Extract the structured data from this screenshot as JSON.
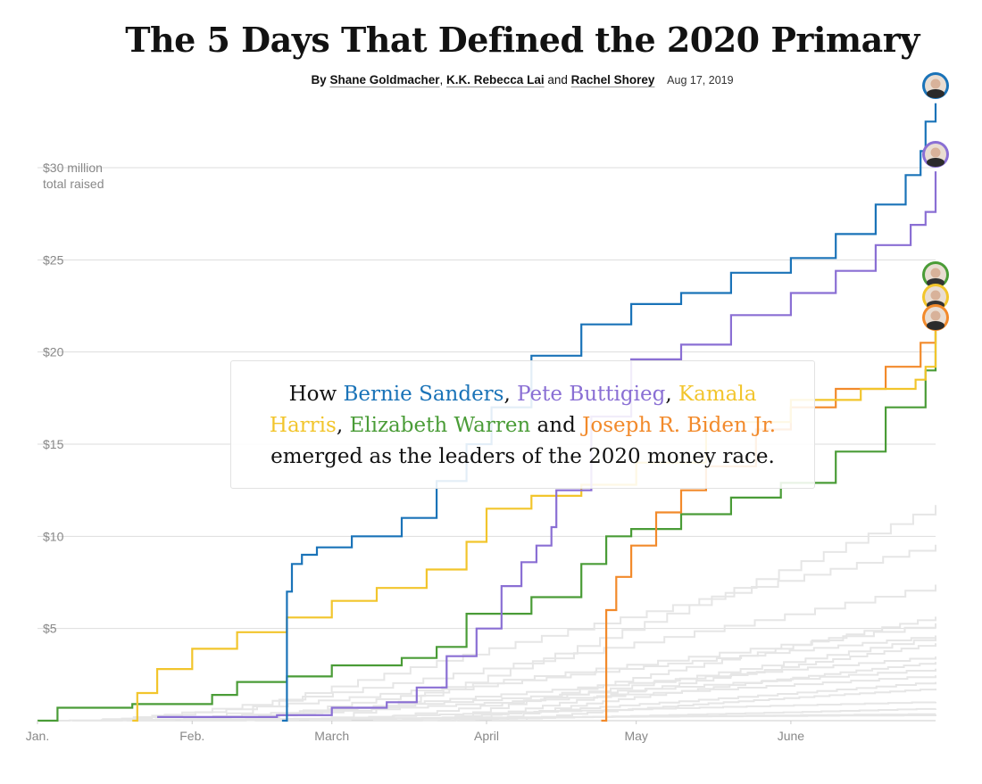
{
  "headline": "The 5 Days That Defined the 2020 Primary",
  "byline": {
    "by": "By",
    "authors": [
      "Shane Goldmacher",
      "K.K. Rebecca Lai",
      "Rachel Shorey"
    ],
    "sep1": ", ",
    "sep2": " and ",
    "date": "Aug 17, 2019"
  },
  "callout": {
    "prefix": "How ",
    "names": [
      "Bernie Sanders",
      "Pete Buttigieg",
      "Kamala Harris",
      "Elizabeth Warren",
      "Joseph R. Biden Jr."
    ],
    "comma": ", ",
    "and": " and ",
    "suffix": " emerged as the leaders of the 2020 money race."
  },
  "colors": {
    "sanders": "#1a73b8",
    "buttigieg": "#8a6fd4",
    "harris": "#f2c52c",
    "warren": "#4a9c37",
    "biden": "#f28a2b",
    "others": "#e6e6e6",
    "grid": "#dddddd",
    "axis_text": "#888888"
  },
  "chart_data": {
    "type": "line",
    "step": true,
    "ylim": [
      0,
      35
    ],
    "y_ticks": [
      {
        "value": 5,
        "label": "$5"
      },
      {
        "value": 10,
        "label": "$10"
      },
      {
        "value": 15,
        "label": "$15"
      },
      {
        "value": 20,
        "label": "$20"
      },
      {
        "value": 25,
        "label": "$25"
      },
      {
        "value": 30,
        "label": "$30 million",
        "label2": "total raised"
      }
    ],
    "x_ticks": [
      {
        "date": "2019-01-01",
        "label": "Jan."
      },
      {
        "date": "2019-02-01",
        "label": "Feb."
      },
      {
        "date": "2019-03-01",
        "label": "March"
      },
      {
        "date": "2019-04-01",
        "label": "April"
      },
      {
        "date": "2019-05-01",
        "label": "May"
      },
      {
        "date": "2019-06-01",
        "label": "June"
      }
    ],
    "xlim": [
      "2019-01-01",
      "2019-06-30"
    ],
    "series": [
      {
        "key": "sanders",
        "x": [
          "2019-02-19",
          "2019-02-20",
          "2019-02-21",
          "2019-02-23",
          "2019-02-26",
          "2019-03-05",
          "2019-03-15",
          "2019-03-22",
          "2019-03-28",
          "2019-04-02",
          "2019-04-10",
          "2019-04-20",
          "2019-04-30",
          "2019-05-10",
          "2019-05-20",
          "2019-06-01",
          "2019-06-10",
          "2019-06-18",
          "2019-06-24",
          "2019-06-27",
          "2019-06-28",
          "2019-06-30"
        ],
        "y": [
          0,
          7.0,
          8.5,
          9.0,
          9.4,
          10.0,
          11.0,
          13.0,
          15.0,
          17.0,
          19.8,
          21.5,
          22.6,
          23.2,
          24.3,
          25.1,
          26.4,
          28.0,
          29.6,
          30.9,
          32.5,
          33.5
        ]
      },
      {
        "key": "buttigieg",
        "x": [
          "2019-01-25",
          "2019-02-05",
          "2019-02-18",
          "2019-03-01",
          "2019-03-12",
          "2019-03-18",
          "2019-03-24",
          "2019-03-30",
          "2019-04-04",
          "2019-04-08",
          "2019-04-11",
          "2019-04-14",
          "2019-04-15",
          "2019-04-22",
          "2019-04-30",
          "2019-05-10",
          "2019-05-20",
          "2019-06-01",
          "2019-06-10",
          "2019-06-18",
          "2019-06-25",
          "2019-06-28",
          "2019-06-30"
        ],
        "y": [
          0.2,
          0.2,
          0.3,
          0.7,
          1.0,
          1.8,
          3.5,
          5.0,
          7.3,
          8.6,
          9.5,
          10.5,
          12.5,
          16.5,
          19.6,
          20.4,
          22.0,
          23.2,
          24.4,
          25.8,
          26.9,
          27.6,
          29.8
        ]
      },
      {
        "key": "harris",
        "x": [
          "2019-01-20",
          "2019-01-21",
          "2019-01-25",
          "2019-02-01",
          "2019-02-10",
          "2019-02-20",
          "2019-03-01",
          "2019-03-10",
          "2019-03-20",
          "2019-03-28",
          "2019-04-01",
          "2019-04-10",
          "2019-04-20",
          "2019-05-01",
          "2019-05-15",
          "2019-06-01",
          "2019-06-15",
          "2019-06-26",
          "2019-06-28",
          "2019-06-30"
        ],
        "y": [
          0,
          1.5,
          2.8,
          3.9,
          4.8,
          5.6,
          6.5,
          7.2,
          8.2,
          9.7,
          11.5,
          12.2,
          12.8,
          14.0,
          16.2,
          17.4,
          18.0,
          18.5,
          19.2,
          22.0
        ]
      },
      {
        "key": "warren",
        "x": [
          "2019-01-01",
          "2019-01-05",
          "2019-01-20",
          "2019-02-05",
          "2019-02-10",
          "2019-02-20",
          "2019-03-01",
          "2019-03-15",
          "2019-03-22",
          "2019-03-28",
          "2019-04-10",
          "2019-04-20",
          "2019-04-25",
          "2019-04-30",
          "2019-05-10",
          "2019-05-20",
          "2019-05-30",
          "2019-06-10",
          "2019-06-20",
          "2019-06-28",
          "2019-06-30"
        ],
        "y": [
          0,
          0.7,
          0.9,
          1.4,
          2.1,
          2.4,
          3.0,
          3.4,
          4.0,
          5.8,
          6.7,
          8.5,
          10.0,
          10.4,
          11.2,
          12.1,
          12.9,
          14.6,
          17.0,
          19.0,
          22.6
        ]
      },
      {
        "key": "biden",
        "x": [
          "2019-04-24",
          "2019-04-25",
          "2019-04-27",
          "2019-04-30",
          "2019-05-05",
          "2019-05-10",
          "2019-05-15",
          "2019-05-25",
          "2019-06-01",
          "2019-06-10",
          "2019-06-20",
          "2019-06-27",
          "2019-06-30"
        ],
        "y": [
          0,
          6.0,
          7.8,
          9.5,
          11.3,
          12.5,
          13.8,
          15.8,
          17.0,
          18.0,
          19.2,
          20.5,
          21.9
        ]
      }
    ],
    "others_series_count": 18
  }
}
